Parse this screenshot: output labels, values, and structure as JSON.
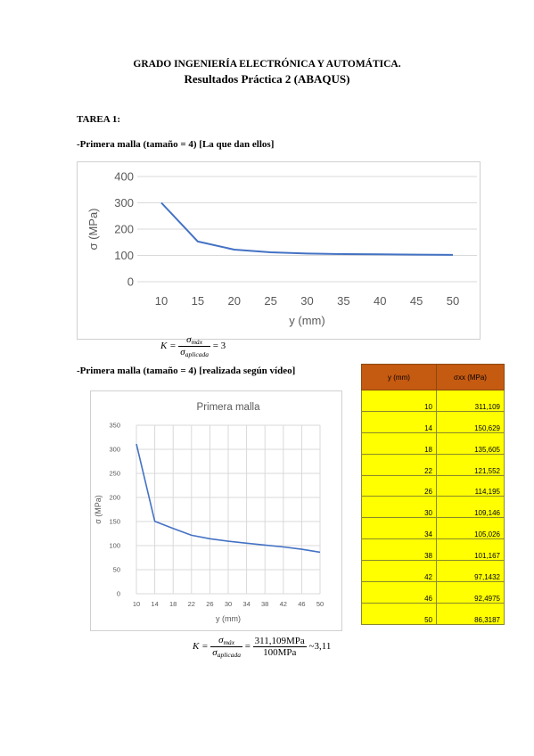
{
  "header": {
    "line1": "GRADO INGENIERÍA ELECTRÓNICA Y AUTOMÁTICA.",
    "line2": "Resultados Práctica 2 (ABAQUS)"
  },
  "section": {
    "task": "TAREA 1:",
    "sub1": "-Primera malla (tamaño = 4) [La que dan ellos]",
    "sub2": "-Primera malla (tamaño = 4) [realizada según vídeo]"
  },
  "formula1": {
    "lhs": "K =",
    "num": "σ",
    "num_sub": "máx",
    "den": "σ",
    "den_sub": "aplicada",
    "rhs": "= 3"
  },
  "formula2": {
    "lhs": "K =",
    "num": "σ",
    "num_sub": "máx",
    "den": "σ",
    "den_sub": "aplicada",
    "eq": "=",
    "num2": "311,109MPa",
    "den2": "100MPa",
    "approx": "~3,11"
  },
  "table": {
    "headers": [
      "y (mm)",
      "σxx (MPa)"
    ],
    "rows": [
      [
        "10",
        "311,109"
      ],
      [
        "14",
        "150,629"
      ],
      [
        "18",
        "135,605"
      ],
      [
        "22",
        "121,552"
      ],
      [
        "26",
        "114,195"
      ],
      [
        "30",
        "109,146"
      ],
      [
        "34",
        "105,026"
      ],
      [
        "38",
        "101,167"
      ],
      [
        "42",
        "97,1432"
      ],
      [
        "46",
        "92,4975"
      ],
      [
        "50",
        "86,3187"
      ]
    ]
  },
  "chart_data": [
    {
      "type": "line",
      "title": "",
      "xlabel": "y (mm)",
      "ylabel": "σ (MPa)",
      "x": [
        10,
        15,
        20,
        25,
        30,
        35,
        40,
        45,
        50
      ],
      "series": [
        {
          "values": [
            300,
            153,
            122,
            112,
            107,
            105,
            104,
            103,
            102
          ]
        }
      ],
      "xticks": [
        "10",
        "15",
        "20",
        "25",
        "30",
        "35",
        "40",
        "45",
        "50"
      ],
      "yticks": [
        "0",
        "100",
        "200",
        "300",
        "400"
      ],
      "ylim": [
        0,
        400
      ],
      "grid": "horizontal",
      "color": "#4472c4"
    },
    {
      "type": "line",
      "title": "Primera malla",
      "xlabel": "y (mm)",
      "ylabel": "σ (MPa)",
      "x": [
        10,
        14,
        18,
        22,
        26,
        30,
        34,
        38,
        42,
        46,
        50
      ],
      "series": [
        {
          "values": [
            311.109,
            150.629,
            135.605,
            121.552,
            114.195,
            109.146,
            105.026,
            101.167,
            97.1432,
            92.4975,
            86.3187
          ]
        }
      ],
      "xticks": [
        "10",
        "14",
        "18",
        "22",
        "26",
        "30",
        "34",
        "38",
        "42",
        "46",
        "50"
      ],
      "yticks": [
        "0",
        "50",
        "100",
        "150",
        "200",
        "250",
        "300",
        "350"
      ],
      "ylim": [
        0,
        350
      ],
      "grid": "both",
      "color": "#4472c4"
    }
  ]
}
